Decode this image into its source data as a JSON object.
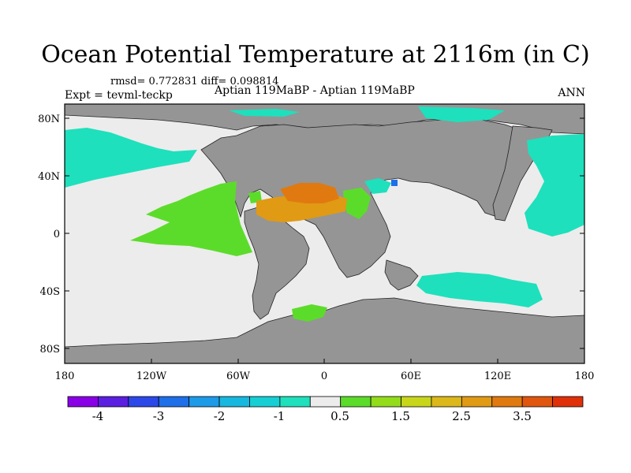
{
  "title": "Ocean Potential Temperature at 2116m (in C)",
  "stats": "rmsd= 0.772831 diff= 0.098814",
  "expt": "Expt = tevml-teckp",
  "case_info": "Aptian   119MaBP - Aptian   119MaBP",
  "season": "ANN",
  "lat_labels": [
    "80N",
    "40N",
    "0",
    "40S",
    "80S"
  ],
  "lon_labels": [
    "180",
    "120W",
    "60W",
    "0",
    "60E",
    "120E",
    "180"
  ],
  "colorbar": {
    "colors": [
      "#8a00e6",
      "#5a1fe0",
      "#2d48e8",
      "#1e6fe8",
      "#1d9ae8",
      "#17b8e0",
      "#16cfd5",
      "#1ee0bc",
      "#ececec",
      "#5cdc2a",
      "#92dc1a",
      "#c8d61a",
      "#dcb81a",
      "#e09a14",
      "#e07a10",
      "#e0560e",
      "#e0300a"
    ],
    "tick_labels": [
      "-4",
      "-3",
      "-2",
      "-1",
      "0.5",
      "1.5",
      "2.5",
      "3.5"
    ]
  },
  "colors": {
    "land": "#959595",
    "ocean_neutral": "#ececec",
    "teal": "#1ee0bc",
    "green": "#5cdc2a",
    "orange": "#e07a10",
    "blue": "#1e6fe8"
  }
}
